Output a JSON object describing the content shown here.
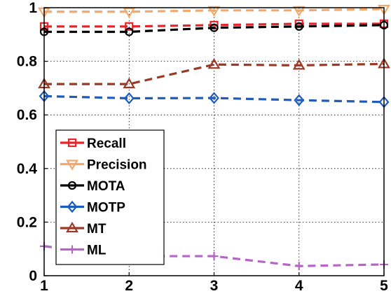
{
  "chart_data": {
    "type": "line",
    "title": "",
    "xlabel": "",
    "ylabel": "",
    "x": [
      1,
      2,
      3,
      4,
      5
    ],
    "xlim": [
      1,
      5
    ],
    "ylim": [
      0,
      1
    ],
    "x_ticks": [
      "1",
      "2",
      "3",
      "4",
      "5"
    ],
    "y_ticks": [
      "0",
      "0.2",
      "0.4",
      "0.6",
      "0.8",
      "1"
    ],
    "y_tick_values": [
      0,
      0.2,
      0.4,
      0.6,
      0.8,
      1
    ],
    "grid": true,
    "legend_position": "lower-left",
    "series": [
      {
        "name": "Recall",
        "values": [
          0.93,
          0.93,
          0.935,
          0.94,
          0.94
        ],
        "color": "#e8232a",
        "marker": "square"
      },
      {
        "name": "Precision",
        "values": [
          0.985,
          0.985,
          0.99,
          0.99,
          0.995
        ],
        "color": "#f5a86a",
        "marker": "triangle-down"
      },
      {
        "name": "MOTA",
        "values": [
          0.91,
          0.91,
          0.925,
          0.93,
          0.935
        ],
        "color": "#000000",
        "marker": "circle"
      },
      {
        "name": "MOTP",
        "values": [
          0.67,
          0.662,
          0.663,
          0.655,
          0.648
        ],
        "color": "#1e5bbf",
        "marker": "diamond"
      },
      {
        "name": "MT",
        "values": [
          0.715,
          0.715,
          0.788,
          0.785,
          0.79
        ],
        "color": "#9a3a26",
        "marker": "triangle-up"
      },
      {
        "name": "ML",
        "values": [
          0.11,
          0.073,
          0.073,
          0.036,
          0.042
        ],
        "color": "#b565c4",
        "marker": "plus"
      }
    ]
  }
}
